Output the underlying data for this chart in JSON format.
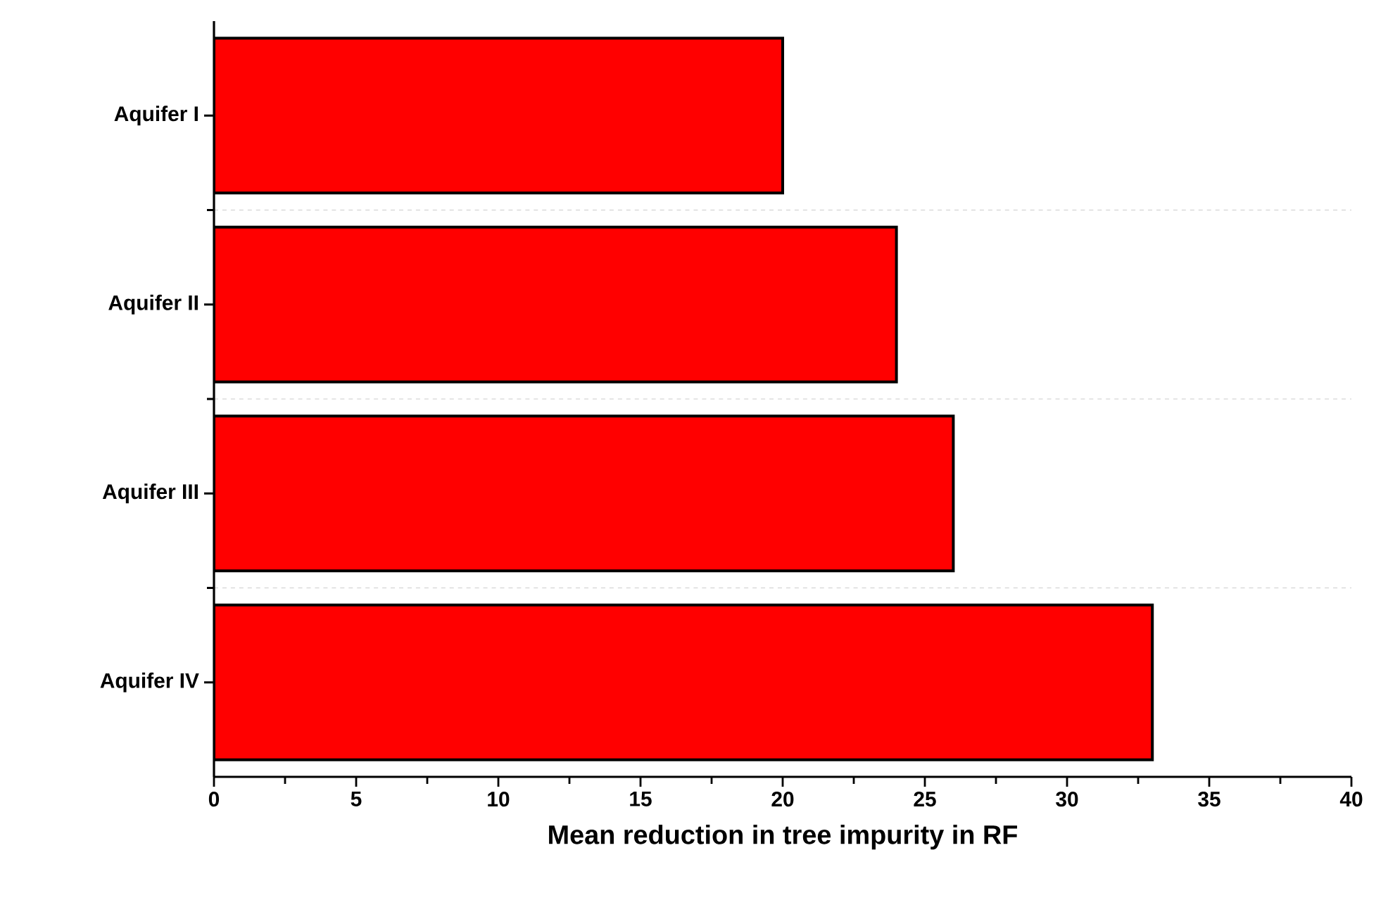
{
  "chart_data": {
    "type": "bar",
    "orientation": "horizontal",
    "xlabel": "Mean reduction in tree impurity in RF",
    "categories": [
      "Aquifer I",
      "Aquifer II",
      "Aquifer III",
      "Aquifer IV"
    ],
    "values": [
      20,
      24,
      26,
      33
    ],
    "color": "#ff0000",
    "xlim": [
      0,
      40
    ],
    "xticks": [
      0,
      5,
      10,
      15,
      20,
      25,
      30,
      35,
      40
    ],
    "grid": "y"
  }
}
